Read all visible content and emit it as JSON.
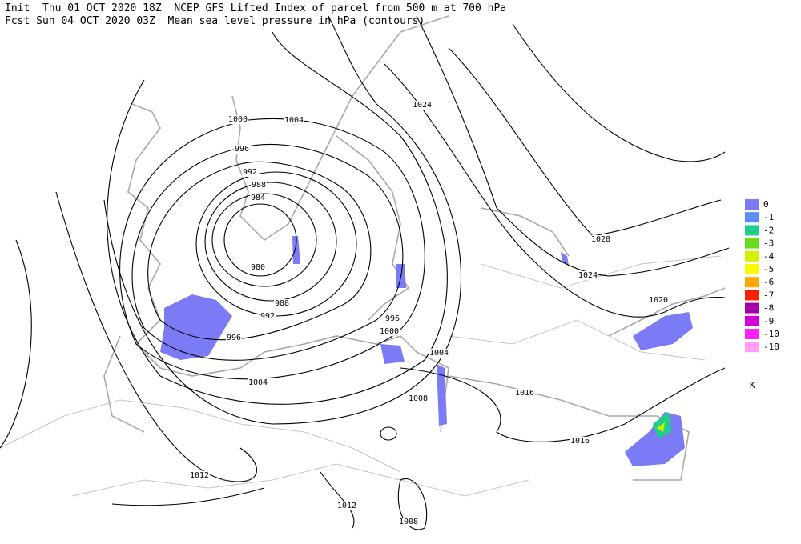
{
  "header": {
    "line1": "Init  Thu 01 OCT 2020 18Z  NCEP GFS Lifted Index of parcel from 500 m at 700 hPa",
    "line2": "Fcst Sun 04 OCT 2020 03Z  Mean sea level pressure in hPa (contours)"
  },
  "contour_labels": [
    "1000",
    "1004",
    "1024",
    "996",
    "992",
    "988",
    "984",
    "980",
    "988",
    "992",
    "996",
    "1004",
    "996",
    "1000",
    "1004",
    "1008",
    "1016",
    "1016",
    "1020",
    "1024",
    "1028",
    "1012",
    "1012",
    "1008"
  ],
  "legend": {
    "labels": [
      "0",
      "-1",
      "-2",
      "-3",
      "-4",
      "-5",
      "-6",
      "-7",
      "-8",
      "-9",
      "-10",
      "-18"
    ],
    "colors": [
      "#7b7bf5",
      "#5a8cf5",
      "#1ecf8a",
      "#6adc1e",
      "#d2f000",
      "#fafa00",
      "#ffa800",
      "#ff2000",
      "#a800a8",
      "#d200d2",
      "#ff20ff",
      "#ffa0f8"
    ],
    "unit": "K"
  }
}
